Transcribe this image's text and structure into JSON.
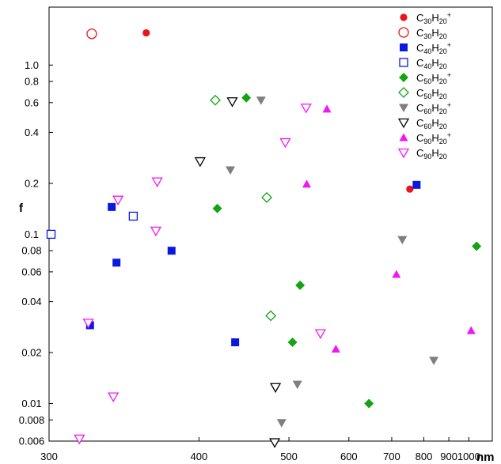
{
  "chart_data": {
    "type": "scatter",
    "title": "",
    "xlabel": "nm",
    "ylabel": "f",
    "xscale": "reciprocal",
    "yscale": "log",
    "xlim": [
      300,
      1150
    ],
    "ylim": [
      0.006,
      2.2
    ],
    "grid": false,
    "legend_position": "top-right",
    "x_ticks": [
      300,
      400,
      500,
      600,
      700,
      800,
      900,
      1000
    ],
    "x_tick_labels": [
      "300",
      "400",
      "500",
      "600",
      "700",
      "800",
      "900",
      "1000"
    ],
    "y_ticks": [
      0.006,
      0.008,
      0.01,
      0.02,
      0.04,
      0.06,
      0.08,
      0.1,
      0.2,
      0.4,
      0.6,
      0.8,
      1.0
    ],
    "y_tick_labels": [
      "0.006",
      "0.008",
      "0.01",
      "0.02",
      "0.04",
      "0.06",
      "0.08",
      "0.1",
      "0.2",
      "0.4",
      "0.6",
      "0.8",
      "1.0"
    ],
    "series": [
      {
        "name": "C30H20+",
        "formula": "C",
        "n1": "30",
        "h": "H",
        "n2": "20",
        "charge": "+",
        "marker": "circle",
        "filled": true,
        "color": "#e8151b",
        "points": [
          [
            358,
            1.55
          ],
          [
            753,
            0.185
          ]
        ]
      },
      {
        "name": "C30H20",
        "formula": "C",
        "n1": "30",
        "h": "H",
        "n2": "20",
        "charge": "",
        "marker": "circle",
        "filled": false,
        "color": "#e8151b",
        "points": [
          [
            323,
            1.53
          ]
        ]
      },
      {
        "name": "C40H20+",
        "formula": "C",
        "n1": "40",
        "h": "H",
        "n2": "20",
        "charge": "+",
        "marker": "square",
        "filled": true,
        "color": "#0a19e0",
        "points": [
          [
            335,
            0.145
          ],
          [
            338,
            0.068
          ],
          [
            377,
            0.08
          ],
          [
            322,
            0.029
          ],
          [
            435,
            0.023
          ],
          [
            775,
            0.196
          ]
        ]
      },
      {
        "name": "C40H20",
        "formula": "C",
        "n1": "40",
        "h": "H",
        "n2": "20",
        "charge": "",
        "marker": "square",
        "filled": false,
        "color": "#0a19e0",
        "points": [
          [
            349,
            0.128
          ],
          [
            301,
            0.1
          ]
        ]
      },
      {
        "name": "C50H20+",
        "formula": "C",
        "n1": "50",
        "h": "H",
        "n2": "20",
        "charge": "+",
        "marker": "diamond",
        "filled": true,
        "color": "#14a314",
        "points": [
          [
            447,
            0.64
          ],
          [
            417,
            0.142
          ],
          [
            516,
            0.05
          ],
          [
            505,
            0.023
          ],
          [
            643,
            0.01
          ],
          [
            1045,
            0.085
          ]
        ]
      },
      {
        "name": "C50H20",
        "formula": "C",
        "n1": "50",
        "h": "H",
        "n2": "20",
        "charge": "",
        "marker": "diamond",
        "filled": false,
        "color": "#14a314",
        "points": [
          [
            415,
            0.62
          ],
          [
            471,
            0.165
          ],
          [
            476,
            0.033
          ]
        ]
      },
      {
        "name": "C60H20+",
        "formula": "C",
        "n1": "60",
        "h": "H",
        "n2": "20",
        "charge": "+",
        "marker": "triangle-down",
        "filled": true,
        "color": "#7f7f7f",
        "points": [
          [
            464,
            0.62
          ],
          [
            430,
            0.24
          ],
          [
            730,
            0.093
          ],
          [
            837,
            0.018
          ],
          [
            512,
            0.013
          ],
          [
            490,
            0.0077
          ]
        ]
      },
      {
        "name": "C60H20",
        "formula": "C",
        "n1": "60",
        "h": "H",
        "n2": "20",
        "charge": "",
        "marker": "triangle-down",
        "filled": false,
        "color": "#000000",
        "points": [
          [
            432,
            0.61
          ],
          [
            401,
            0.27
          ],
          [
            482,
            0.0125
          ],
          [
            481,
            0.0059
          ]
        ]
      },
      {
        "name": "C90H20+",
        "formula": "C",
        "n1": "90",
        "h": "H",
        "n2": "20",
        "charge": "+",
        "marker": "triangle-up",
        "filled": true,
        "color": "#f315f3",
        "points": [
          [
            559,
            0.55
          ],
          [
            526,
            0.198
          ],
          [
            713,
            0.058
          ],
          [
            575,
            0.021
          ],
          [
            1013,
            0.027
          ]
        ]
      },
      {
        "name": "C90H20",
        "formula": "C",
        "n1": "90",
        "h": "H",
        "n2": "20",
        "charge": "",
        "marker": "triangle-down",
        "filled": false,
        "color": "#f315f3",
        "points": [
          [
            525,
            0.56
          ],
          [
            495,
            0.35
          ],
          [
            366,
            0.205
          ],
          [
            339,
            0.16
          ],
          [
            365,
            0.105
          ],
          [
            321,
            0.03
          ],
          [
            548,
            0.026
          ],
          [
            336,
            0.011
          ],
          [
            316,
            0.0062
          ]
        ]
      }
    ]
  }
}
